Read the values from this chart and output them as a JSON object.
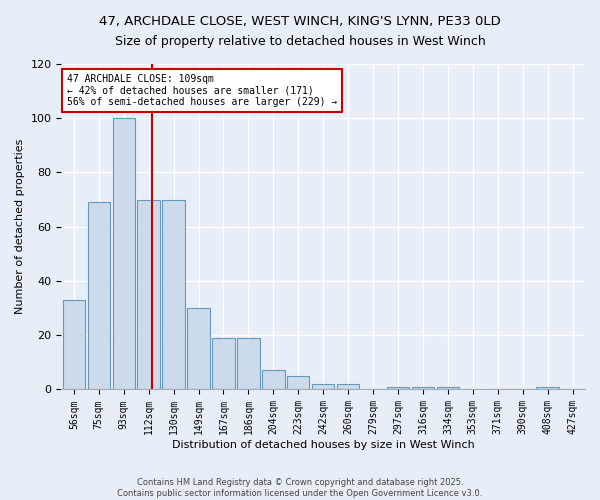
{
  "title_line1": "47, ARCHDALE CLOSE, WEST WINCH, KING'S LYNN, PE33 0LD",
  "title_line2": "Size of property relative to detached houses in West Winch",
  "xlabel": "Distribution of detached houses by size in West Winch",
  "ylabel": "Number of detached properties",
  "bins": [
    "56sqm",
    "75sqm",
    "93sqm",
    "112sqm",
    "130sqm",
    "149sqm",
    "167sqm",
    "186sqm",
    "204sqm",
    "223sqm",
    "242sqm",
    "260sqm",
    "279sqm",
    "297sqm",
    "316sqm",
    "334sqm",
    "353sqm",
    "371sqm",
    "390sqm",
    "408sqm",
    "427sqm"
  ],
  "bar_values": [
    33,
    69,
    100,
    70,
    70,
    30,
    19,
    19,
    7,
    5,
    2,
    2,
    0,
    1,
    1,
    1,
    0,
    0,
    0,
    1,
    0
  ],
  "bar_color": "#ccdaeb",
  "bar_edge_color": "#6699bb",
  "vline_x_index": 3.15,
  "annotation_line1": "47 ARCHDALE CLOSE: 109sqm",
  "annotation_line2": "← 42% of detached houses are smaller (171)",
  "annotation_line3": "56% of semi-detached houses are larger (229) →",
  "annotation_box_facecolor": "#ffffff",
  "annotation_box_edgecolor": "#cc0000",
  "vline_color": "#cc0000",
  "background_color": "#e8eef8",
  "grid_color": "#ffffff",
  "ylim": [
    0,
    120
  ],
  "yticks": [
    0,
    20,
    40,
    60,
    80,
    100,
    120
  ],
  "footnote_line1": "Contains HM Land Registry data © Crown copyright and database right 2025.",
  "footnote_line2": "Contains public sector information licensed under the Open Government Licence v3.0."
}
